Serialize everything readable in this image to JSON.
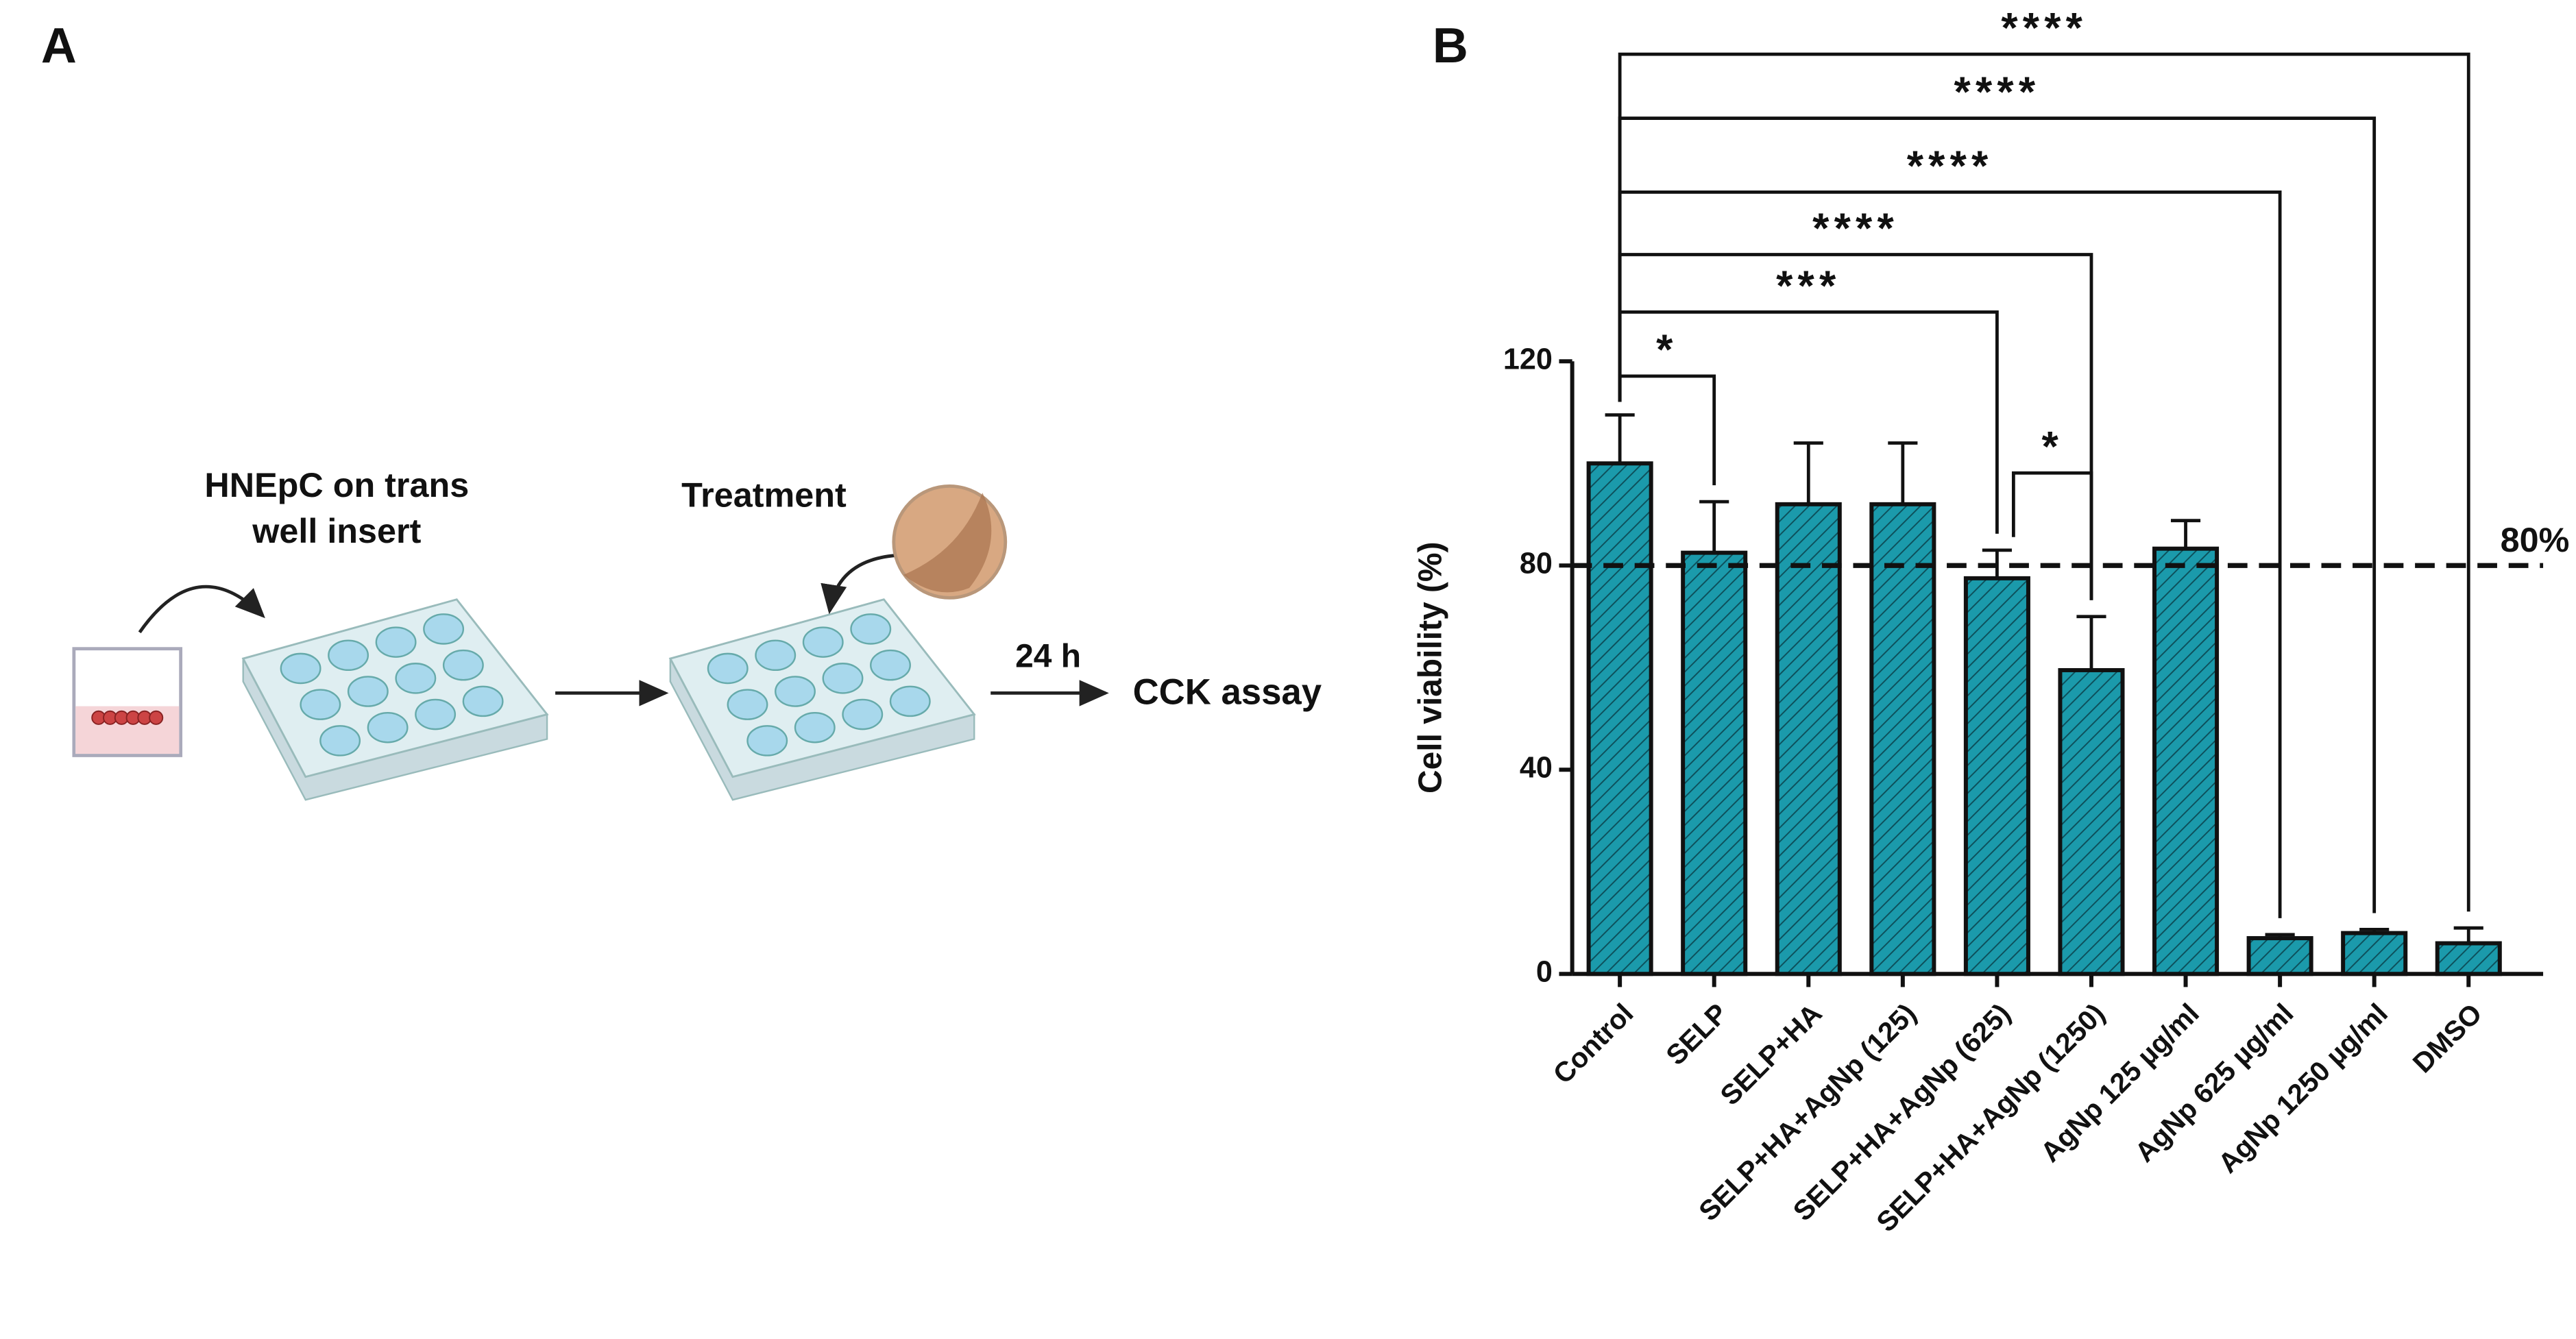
{
  "panel_a": {
    "label": "A",
    "step1": [
      "HNEpC on trans",
      "well insert"
    ],
    "step2": "Treatment",
    "time": "24 h",
    "readout": "CCK assay"
  },
  "chart_data": {
    "type": "bar",
    "panel_label": "B",
    "y_label": "Cell viability (%)",
    "categories": [
      "Control",
      "SELP",
      "SELP+HA",
      "SELP+HA+AgNp (125)",
      "SELP+HA+AgNp (625)",
      "SELP+HA+AgNp (1250)",
      "AgNp 125 µg/ml",
      "AgNp 625 µg/ml",
      "AgNp 1250 µg/ml",
      "DMSO"
    ],
    "values": [
      100,
      82.5,
      92,
      92,
      77.5,
      59.5,
      83.3,
      7,
      8,
      6
    ],
    "errors": [
      9.5,
      10,
      12,
      12,
      5.5,
      10.5,
      5.5,
      0.7,
      0.7,
      3
    ],
    "color": "#1b9aab",
    "ylim": [
      0,
      120
    ],
    "yticks": [
      0,
      40,
      80,
      120
    ],
    "reference_line": {
      "value": 80,
      "label": "80%"
    },
    "comparisons": [
      {
        "groups": [
          "Control",
          "SELP"
        ],
        "label": "*"
      },
      {
        "groups": [
          "SELP+HA+AgNp (625)",
          "SELP+HA+AgNp (1250)"
        ],
        "label": "*"
      },
      {
        "groups": [
          "Control",
          "SELP+HA+AgNp (625)"
        ],
        "label": "***"
      },
      {
        "groups": [
          "Control",
          "SELP+HA+AgNp (1250)"
        ],
        "label": "****"
      },
      {
        "groups": [
          "Control",
          "AgNp 625 µg/ml"
        ],
        "label": "****"
      },
      {
        "groups": [
          "Control",
          "AgNp 1250 µg/ml"
        ],
        "label": "****"
      },
      {
        "groups": [
          "Control",
          "DMSO"
        ],
        "label": "****"
      }
    ]
  }
}
